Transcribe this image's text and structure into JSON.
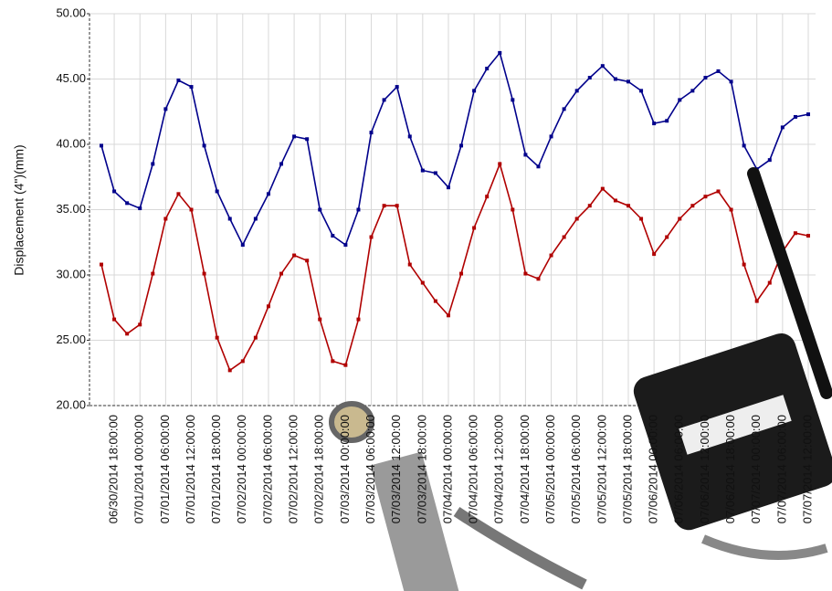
{
  "chart_data": {
    "type": "line",
    "y_label": "Displacement (4\")(mm)",
    "categories": [
      null,
      "06/30/2014 18:00:00",
      null,
      "07/01/2014 00:00:00",
      null,
      "07/01/2014 06:00:00",
      null,
      "07/01/2014 12:00:00",
      null,
      "07/01/2014 18:00:00",
      null,
      "07/02/2014 00:00:00",
      null,
      "07/02/2014 06:00:00",
      null,
      "07/02/2014 12:00:00",
      null,
      "07/02/2014 18:00:00",
      null,
      "07/03/2014 00:00:00",
      null,
      "07/03/2014 06:00:00",
      null,
      "07/03/2014 12:00:00",
      null,
      "07/03/2014 18:00:00",
      null,
      "07/04/2014 00:00:00",
      null,
      "07/04/2014 06:00:00",
      null,
      "07/04/2014 12:00:00",
      null,
      "07/04/2014 18:00:00",
      null,
      "07/05/2014 00:00:00",
      null,
      "07/05/2014 06:00:00",
      null,
      "07/05/2014 12:00:00",
      null,
      "07/05/2014 18:00:00",
      null,
      "07/06/2014 00:00:00",
      null,
      "07/06/2014 06:00:00",
      null,
      "07/06/2014 12:00:00",
      null,
      "07/06/2014 18:00:00",
      null,
      "07/07/2014 00:00:00",
      null,
      "07/07/2014 06:00:00",
      null,
      "07/07/2014 12:00:00"
    ],
    "series": [
      {
        "color": "#00008b",
        "values": [
          39.9,
          36.4,
          35.5,
          35.1,
          38.5,
          42.7,
          44.9,
          44.4,
          39.9,
          36.4,
          34.3,
          32.3,
          34.3,
          36.2,
          38.5,
          40.6,
          40.4,
          35.0,
          33.0,
          32.3,
          35.0,
          40.9,
          43.4,
          44.4,
          40.6,
          38.0,
          37.8,
          36.7,
          39.9,
          44.1,
          45.8,
          47.0,
          43.4,
          39.2,
          38.3,
          40.6,
          42.7,
          44.1,
          45.1,
          46.0,
          45.0,
          44.8,
          44.1,
          41.6,
          41.8,
          43.4,
          44.1,
          45.1,
          45.6,
          44.8,
          39.9,
          38.1,
          38.8,
          41.3,
          42.1,
          42.3
        ]
      },
      {
        "color": "#b00000",
        "values": [
          30.8,
          26.6,
          25.5,
          26.2,
          30.1,
          34.3,
          36.2,
          35.0,
          30.1,
          25.2,
          22.7,
          23.4,
          25.2,
          27.6,
          30.1,
          31.5,
          31.1,
          26.6,
          23.4,
          23.1,
          26.6,
          32.9,
          35.3,
          35.3,
          30.8,
          29.4,
          28.0,
          26.9,
          30.1,
          33.6,
          36.0,
          38.5,
          35.0,
          30.1,
          29.7,
          31.5,
          32.9,
          34.3,
          35.3,
          36.6,
          35.7,
          35.3,
          34.3,
          31.6,
          32.9,
          34.3,
          35.3,
          36.0,
          36.4,
          35.0,
          30.8,
          28.0,
          29.4,
          31.8,
          33.2,
          33.0
        ]
      }
    ],
    "ylim": [
      20,
      50
    ],
    "yticks": [
      {
        "value": 20,
        "label": "20.00"
      },
      {
        "value": 25,
        "label": "25.00"
      },
      {
        "value": 30,
        "label": "30.00"
      },
      {
        "value": 35,
        "label": "35.00"
      },
      {
        "value": 40,
        "label": "40.00"
      },
      {
        "value": 45,
        "label": "45.00"
      },
      {
        "value": 50,
        "label": "50.00"
      }
    ],
    "grid": true
  }
}
